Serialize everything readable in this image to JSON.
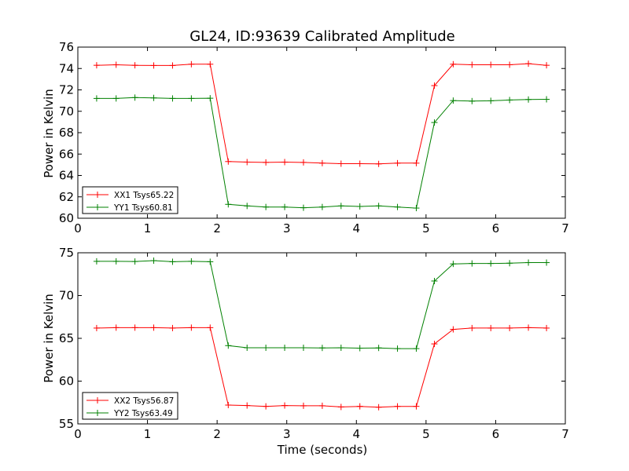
{
  "chart_data": [
    {
      "type": "line",
      "title": "GL24, ID:93639 Calibrated Amplitude",
      "xlabel": "",
      "ylabel": "Power in Kelvin",
      "xlim": [
        0,
        7
      ],
      "ylim": [
        60,
        76
      ],
      "xticks": [
        0,
        1,
        2,
        3,
        4,
        5,
        6,
        7
      ],
      "yticks": [
        60,
        62,
        64,
        66,
        68,
        70,
        72,
        74,
        76
      ],
      "legend_position": "lower-left",
      "x": [
        0.27,
        0.55,
        0.82,
        1.09,
        1.36,
        1.63,
        1.9,
        2.16,
        2.43,
        2.7,
        2.97,
        3.24,
        3.51,
        3.78,
        4.05,
        4.32,
        4.59,
        4.86,
        5.12,
        5.39,
        5.66,
        5.93,
        6.2,
        6.47,
        6.73
      ],
      "series": [
        {
          "name": "XX1 Tsys65.22",
          "color": "#ff0000",
          "values": [
            74.3,
            74.35,
            74.3,
            74.28,
            74.28,
            74.4,
            74.4,
            65.3,
            65.25,
            65.22,
            65.25,
            65.22,
            65.15,
            65.1,
            65.1,
            65.08,
            65.15,
            65.15,
            72.4,
            74.4,
            74.35,
            74.35,
            74.35,
            74.45,
            74.3
          ]
        },
        {
          "name": "YY1 Tsys60.81",
          "color": "#008000",
          "values": [
            71.2,
            71.2,
            71.28,
            71.25,
            71.2,
            71.2,
            71.22,
            61.3,
            61.15,
            61.05,
            61.05,
            60.98,
            61.05,
            61.15,
            61.1,
            61.15,
            61.05,
            60.95,
            68.95,
            71.0,
            70.95,
            70.98,
            71.05,
            71.1,
            71.12
          ]
        }
      ]
    },
    {
      "type": "line",
      "title": "",
      "xlabel": "Time (seconds)",
      "ylabel": "Power in Kelvin",
      "xlim": [
        0,
        7
      ],
      "ylim": [
        55,
        75
      ],
      "xticks": [
        0,
        1,
        2,
        3,
        4,
        5,
        6,
        7
      ],
      "yticks": [
        55,
        60,
        65,
        70,
        75
      ],
      "legend_position": "lower-left",
      "x": [
        0.27,
        0.55,
        0.82,
        1.09,
        1.36,
        1.63,
        1.9,
        2.16,
        2.43,
        2.7,
        2.97,
        3.24,
        3.51,
        3.78,
        4.05,
        4.32,
        4.59,
        4.86,
        5.12,
        5.39,
        5.66,
        5.93,
        6.2,
        6.47,
        6.73
      ],
      "series": [
        {
          "name": "XX2 Tsys56.87",
          "color": "#ff0000",
          "values": [
            66.2,
            66.25,
            66.25,
            66.25,
            66.2,
            66.25,
            66.25,
            57.2,
            57.15,
            57.05,
            57.15,
            57.12,
            57.12,
            56.98,
            57.05,
            56.95,
            57.05,
            57.05,
            64.35,
            66.05,
            66.2,
            66.2,
            66.2,
            66.25,
            66.2
          ]
        },
        {
          "name": "YY2 Tsys63.49",
          "color": "#008000",
          "values": [
            74.0,
            74.0,
            73.98,
            74.08,
            73.95,
            74.0,
            73.95,
            64.15,
            63.9,
            63.9,
            63.9,
            63.9,
            63.88,
            63.9,
            63.85,
            63.88,
            63.8,
            63.8,
            71.7,
            73.7,
            73.75,
            73.75,
            73.78,
            73.85,
            73.85
          ]
        }
      ]
    }
  ]
}
